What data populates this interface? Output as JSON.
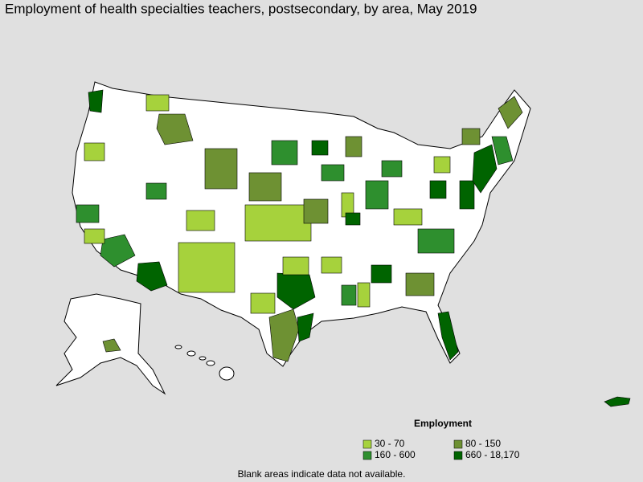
{
  "title": "Employment of health specialties teachers, postsecondary, by area, May 2019",
  "legend": {
    "title": "Employment",
    "items": [
      {
        "label": "30 - 70",
        "color": "#a6d23c"
      },
      {
        "label": "80 - 150",
        "color": "#6e9133"
      },
      {
        "label": "160 - 600",
        "color": "#2e8f2e"
      },
      {
        "label": "660 - 18,170",
        "color": "#006400"
      }
    ]
  },
  "footnote": "Blank areas indicate data not available."
}
